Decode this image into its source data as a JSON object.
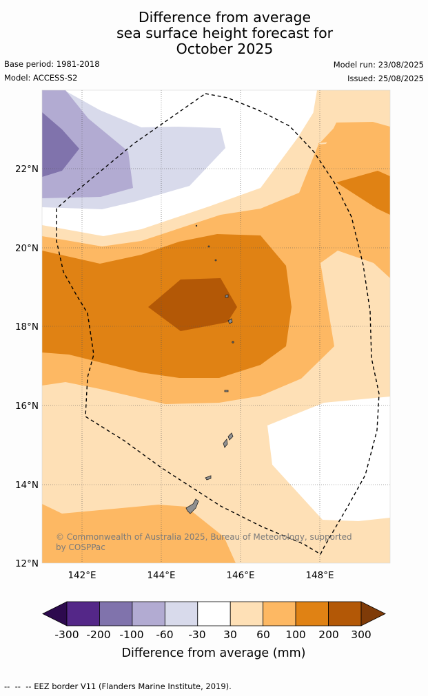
{
  "title": {
    "line1": "Difference from average",
    "line2": "sea surface height forecast for",
    "line3": "October 2025"
  },
  "meta": {
    "base_period": "Base period: 1981-2018",
    "model": "Model: ACCESS-S2",
    "model_run": "Model run: 23/08/2025",
    "issued": "Issued: 25/08/2025"
  },
  "map": {
    "lat_ticks": [
      "12°N",
      "14°N",
      "16°N",
      "18°N",
      "20°N",
      "22°N"
    ],
    "lon_ticks": [
      "142°E",
      "144°E",
      "146°E",
      "148°E"
    ],
    "lat_range": [
      12,
      24
    ],
    "lon_range": [
      141,
      149.8
    ],
    "copyright_line1": "© Commonwealth of Australia 2025, Bureau of Meteorology, supported",
    "copyright_line2": "by COSPPac"
  },
  "colorbar": {
    "labels": [
      "-300",
      "-200",
      "-100",
      "-60",
      "-30",
      "30",
      "60",
      "100",
      "200",
      "300"
    ],
    "colors": [
      "#2d0a4e",
      "#542788",
      "#8073ac",
      "#b2abd2",
      "#d8daeb",
      "#ffffff",
      "#fee0b6",
      "#fdb863",
      "#e08214",
      "#b35806",
      "#7f3b08"
    ],
    "title": "Difference from average (mm)"
  },
  "footer": {
    "eez_note": "EEZ border V11 (Flanders Marine Institute, 2019)."
  }
}
